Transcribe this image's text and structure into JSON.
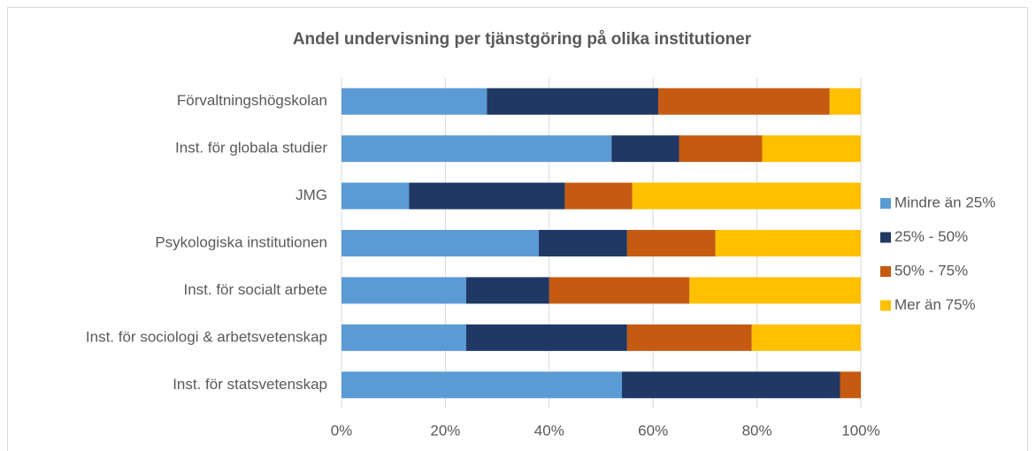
{
  "chart_data": {
    "type": "stacked_barh",
    "title": "Andel undervisning per tjänstgöring på olika institutioner",
    "categories": [
      "Förvaltningshögskolan",
      "Inst. för globala studier",
      "JMG",
      "Psykologiska institutionen",
      "Inst. för socialt arbete",
      "Inst. för sociologi & arbetsvetenskap",
      "Inst. för statsvetenskap"
    ],
    "series": [
      {
        "name": "Mindre än 25%",
        "color": "#5b9bd5",
        "values": [
          28,
          52,
          13,
          38,
          24,
          24,
          54
        ]
      },
      {
        "name": "25% - 50%",
        "color": "#1f3864",
        "values": [
          33,
          13,
          30,
          17,
          16,
          31,
          42
        ]
      },
      {
        "name": "50% - 75%",
        "color": "#c55a11",
        "values": [
          33,
          16,
          13,
          17,
          27,
          24,
          4
        ]
      },
      {
        "name": "Mer än 75%",
        "color": "#ffc000",
        "values": [
          6,
          19,
          44,
          28,
          33,
          21,
          0
        ]
      }
    ],
    "xlim": [
      0,
      100
    ],
    "xticks": [
      {
        "value": 0,
        "label": "0%"
      },
      {
        "value": 20,
        "label": "20%"
      },
      {
        "value": 40,
        "label": "40%"
      },
      {
        "value": 60,
        "label": "60%"
      },
      {
        "value": 80,
        "label": "80%"
      },
      {
        "value": 100,
        "label": "100%"
      }
    ],
    "grid": true,
    "legend": "right"
  }
}
